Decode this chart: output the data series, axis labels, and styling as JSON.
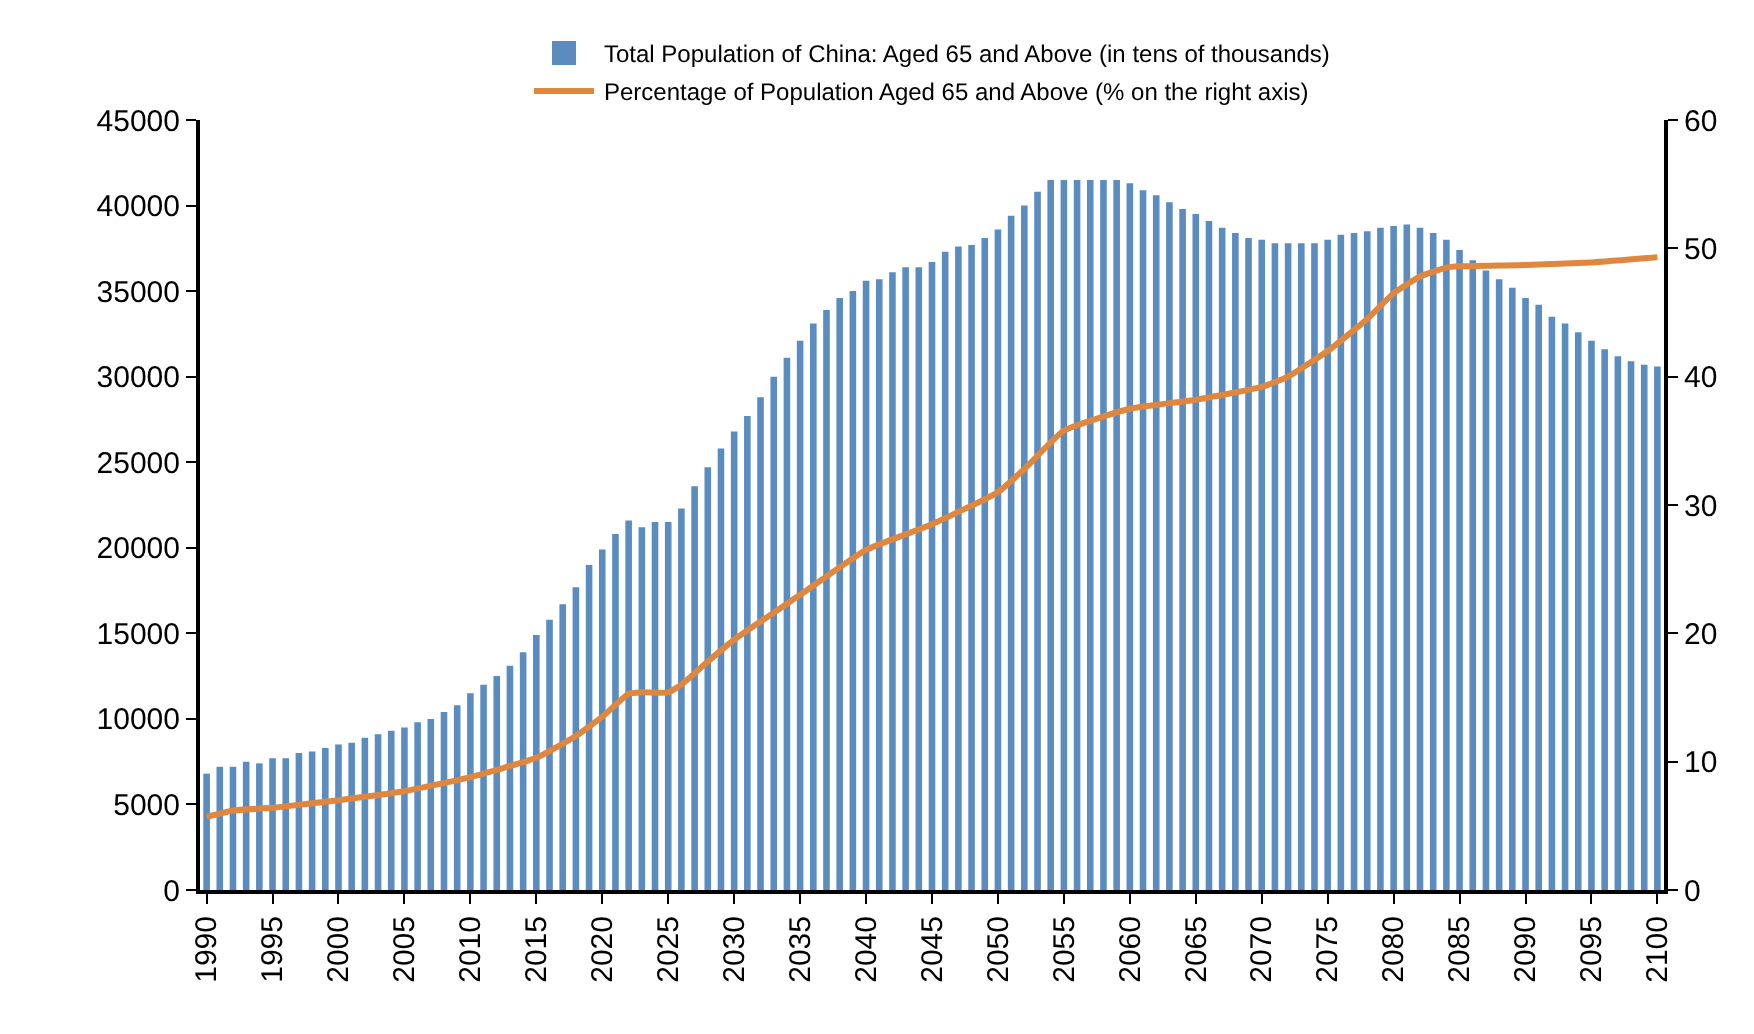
{
  "chart_data": {
    "type": "bar",
    "x": [
      1990,
      1991,
      1992,
      1993,
      1994,
      1995,
      1996,
      1997,
      1998,
      1999,
      2000,
      2001,
      2002,
      2003,
      2004,
      2005,
      2006,
      2007,
      2008,
      2009,
      2010,
      2011,
      2012,
      2013,
      2014,
      2015,
      2016,
      2017,
      2018,
      2019,
      2020,
      2021,
      2022,
      2023,
      2024,
      2025,
      2026,
      2027,
      2028,
      2029,
      2030,
      2031,
      2032,
      2033,
      2034,
      2035,
      2036,
      2037,
      2038,
      2039,
      2040,
      2041,
      2042,
      2043,
      2044,
      2045,
      2046,
      2047,
      2048,
      2049,
      2050,
      2051,
      2052,
      2053,
      2054,
      2055,
      2056,
      2057,
      2058,
      2059,
      2060,
      2061,
      2062,
      2063,
      2064,
      2065,
      2066,
      2067,
      2068,
      2069,
      2070,
      2071,
      2072,
      2073,
      2074,
      2075,
      2076,
      2077,
      2078,
      2079,
      2080,
      2081,
      2082,
      2083,
      2084,
      2085,
      2086,
      2087,
      2088,
      2089,
      2090,
      2091,
      2092,
      2093,
      2094,
      2095,
      2096,
      2097,
      2098,
      2099,
      2100
    ],
    "series": [
      {
        "name": "Total Population of China: Aged 65 and Above (in tens of thousands)",
        "color": "#5b8cc0",
        "values": [
          6800,
          7200,
          7200,
          7500,
          7400,
          7700,
          7700,
          8000,
          8100,
          8300,
          8500,
          8600,
          8900,
          9100,
          9300,
          9500,
          9800,
          10000,
          10400,
          10800,
          11500,
          12000,
          12500,
          13100,
          13900,
          14900,
          15800,
          16700,
          17700,
          19000,
          19900,
          20800,
          21600,
          21200,
          21500,
          21500,
          22300,
          23600,
          24700,
          25800,
          26800,
          27700,
          28800,
          30000,
          31100,
          32100,
          33100,
          33900,
          34600,
          35000,
          35600,
          35700,
          36100,
          36400,
          36400,
          36700,
          37300,
          37600,
          37700,
          38100,
          38600,
          39400,
          40000,
          40800,
          41500,
          41500,
          41500,
          41500,
          41500,
          41500,
          41300,
          40900,
          40600,
          40200,
          39800,
          39500,
          39100,
          38700,
          38400,
          38100,
          38000,
          37800,
          37800,
          37800,
          37800,
          38000,
          38300,
          38400,
          38500,
          38700,
          38800,
          38900,
          38700,
          38400,
          38000,
          37400,
          36800,
          36200,
          35700,
          35200,
          34600,
          34200,
          33500,
          33100,
          32600,
          32100,
          31600,
          31200,
          30900,
          30700,
          30600
        ]
      },
      {
        "name": "Percentage of Population Aged 65 and Above (% on the right axis)",
        "type": "line",
        "axis": "y2",
        "color": "#e0873f",
        "x": [
          1990,
          1992,
          1995,
          2000,
          2005,
          2010,
          2015,
          2018,
          2020,
          2022,
          2023,
          2025,
          2026,
          2028,
          2030,
          2035,
          2040,
          2045,
          2050,
          2052,
          2055,
          2060,
          2065,
          2070,
          2072,
          2075,
          2078,
          2080,
          2082,
          2084,
          2085,
          2090,
          2095,
          2100
        ],
        "values": [
          5.7,
          6.2,
          6.4,
          7.0,
          7.7,
          8.8,
          10.3,
          12.0,
          13.5,
          15.3,
          15.4,
          15.4,
          16.0,
          17.8,
          19.5,
          23.0,
          26.5,
          28.5,
          31.0,
          32.8,
          35.8,
          37.5,
          38.2,
          39.2,
          40.0,
          42.0,
          44.5,
          46.5,
          47.8,
          48.5,
          48.6,
          48.7,
          48.9,
          49.3
        ]
      }
    ],
    "xlim": [
      1989.5,
      2100.5
    ],
    "xticks": [
      1990,
      1995,
      2000,
      2005,
      2010,
      2015,
      2020,
      2025,
      2030,
      2035,
      2040,
      2045,
      2050,
      2055,
      2060,
      2065,
      2070,
      2075,
      2080,
      2085,
      2090,
      2095,
      2100
    ],
    "ylim": [
      0,
      45000
    ],
    "yticks": [
      0,
      5000,
      10000,
      15000,
      20000,
      25000,
      30000,
      35000,
      40000,
      45000
    ],
    "y2lim": [
      0,
      60
    ],
    "y2ticks": [
      0,
      10,
      20,
      30,
      40,
      50,
      60
    ],
    "legend": "top",
    "marker": "none",
    "line_style": "solid"
  }
}
